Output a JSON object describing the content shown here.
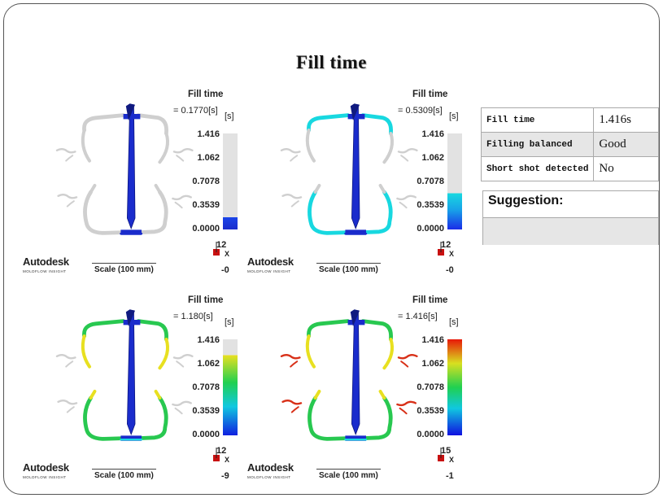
{
  "title": "Fill time",
  "scale_ticks": [
    "1.416",
    "1.062",
    "0.7078",
    "0.3539",
    "0.0000"
  ],
  "fill_label": "Fill time",
  "logo": "Autodesk",
  "logo_sub": "MOLDFLOW INSIGHT",
  "scale_text": "Scale (100 mm)",
  "unit": "[s]",
  "panels": [
    {
      "value": "= 0.1770[s]",
      "axis_top": "12",
      "axis_mid": "X",
      "axis_bot": "-0",
      "fill_fraction": 0.125
    },
    {
      "value": "= 0.5309[s]",
      "axis_top": "12",
      "axis_mid": "X",
      "axis_bot": "-0",
      "fill_fraction": 0.375
    },
    {
      "value": "= 1.180[s]",
      "axis_top": "12",
      "axis_mid": "X",
      "axis_bot": "-9",
      "fill_fraction": 0.833
    },
    {
      "value": "= 1.416[s]",
      "axis_top": "15",
      "axis_mid": "X",
      "axis_bot": "-1",
      "fill_fraction": 1.0
    }
  ],
  "info": {
    "rows": [
      {
        "label": "Fill time",
        "value": "1.416s"
      },
      {
        "label": "Filling balanced",
        "value": "Good"
      },
      {
        "label": "Short shot detected",
        "value": "No"
      }
    ]
  },
  "suggestion": {
    "heading": "Suggestion:",
    "text": ""
  },
  "colors": {
    "blue": "#1a2ccc",
    "grey": "#cfcfcf",
    "cyan": "#18d8e0",
    "green": "#28c850",
    "yellow": "#e8e020",
    "red": "#d83018"
  }
}
